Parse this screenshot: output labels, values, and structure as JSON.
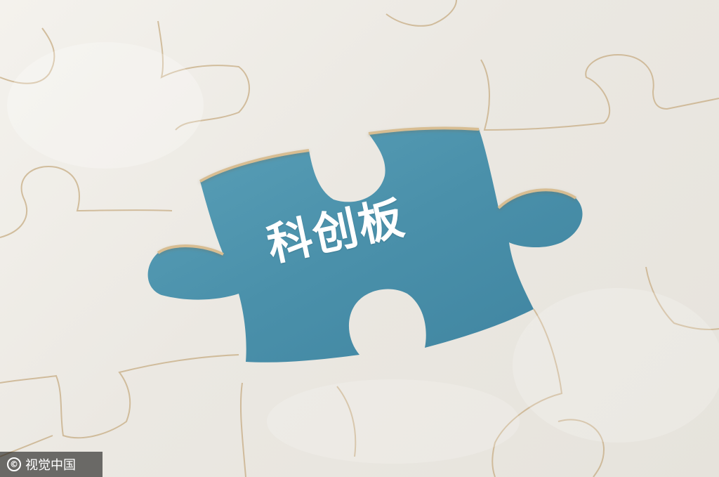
{
  "image": {
    "headline_text": "科创板",
    "watermark_text": "视觉中国",
    "watermark_symbol": "©"
  },
  "colors": {
    "puzzle_white": "#f2f0eb",
    "puzzle_edge": "#c8a97a",
    "hole_blue": "#4d94ae",
    "headline_color": "#ffffff"
  },
  "icons": {
    "copyright": "copyright-icon"
  }
}
